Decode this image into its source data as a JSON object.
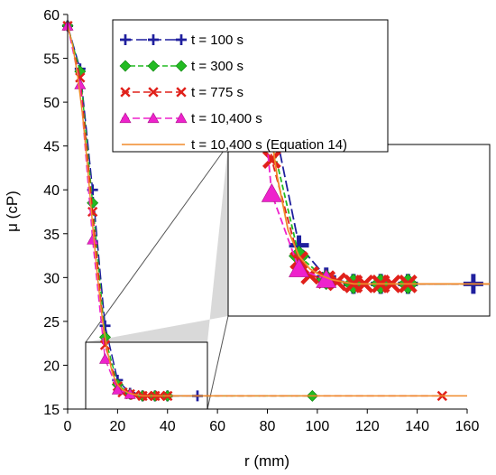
{
  "chart_data": {
    "type": "line",
    "xlabel": "r (mm)",
    "ylabel": "μ (cP)",
    "xlim": [
      0,
      160
    ],
    "ylim": [
      15,
      60
    ],
    "x_ticks": [
      0,
      20,
      40,
      60,
      80,
      100,
      120,
      140,
      160
    ],
    "y_ticks": [
      15,
      20,
      25,
      30,
      35,
      40,
      45,
      50,
      55,
      60
    ],
    "legend_position": "top-right",
    "grid": false,
    "series": [
      {
        "name": "t = 100 s",
        "color": "#1f1f9e",
        "line_style": "long-dash",
        "marker": "plus",
        "x": [
          0,
          5,
          10,
          15,
          20,
          25,
          30,
          35,
          40,
          52
        ],
        "y": [
          58.7,
          53.8,
          40.0,
          24.5,
          18.3,
          16.8,
          16.5,
          16.5,
          16.5,
          16.5
        ]
      },
      {
        "name": "t = 300 s",
        "color": "#22bb22",
        "line_style": "short-dash",
        "marker": "diamond",
        "x": [
          0,
          5,
          10,
          15,
          20,
          25,
          30,
          35,
          40,
          98
        ],
        "y": [
          58.7,
          53.5,
          38.5,
          23.2,
          17.8,
          16.7,
          16.5,
          16.5,
          16.5,
          16.5
        ]
      },
      {
        "name": "t = 775 s",
        "color": "#e0201a",
        "line_style": "dash",
        "marker": "x",
        "x": [
          0,
          5,
          10,
          15,
          20,
          22,
          25,
          27,
          30,
          32,
          35,
          37,
          40,
          150
        ],
        "y": [
          58.7,
          52.8,
          37.5,
          22.3,
          17.6,
          16.9,
          16.7,
          16.6,
          16.5,
          16.5,
          16.5,
          16.5,
          16.5,
          16.5
        ]
      },
      {
        "name": "t = 10,400 s",
        "color": "#ee22cc",
        "line_style": "dash",
        "marker": "triangle",
        "x": [
          0,
          5,
          10,
          15,
          20,
          25
        ],
        "y": [
          58.7,
          52.0,
          34.3,
          20.7,
          17.2,
          16.7
        ]
      },
      {
        "name": "t = 10,400 s (Equation 14)",
        "color": "#f08a2a",
        "line_style": "solid",
        "marker": "none",
        "x": [
          0,
          2,
          4,
          6,
          8,
          10,
          12,
          14,
          16,
          18,
          20,
          22,
          24,
          26,
          28,
          30,
          40,
          60,
          100,
          150,
          160
        ],
        "y": [
          58.7,
          56.5,
          53.0,
          48.5,
          42.5,
          36.0,
          30.0,
          25.0,
          21.5,
          19.0,
          17.8,
          17.2,
          16.9,
          16.7,
          16.6,
          16.5,
          16.5,
          16.5,
          16.5,
          16.5,
          16.5
        ]
      }
    ],
    "inset": {
      "zoom_region_xlim": [
        7,
        55
      ],
      "zoom_region_ylim": [
        15,
        23
      ]
    }
  }
}
